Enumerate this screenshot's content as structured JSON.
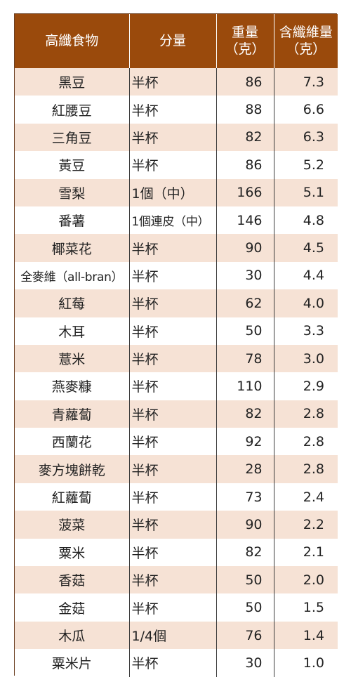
{
  "table": {
    "header": {
      "food": "高纖食物",
      "amount": "分量",
      "weight_line1": "重量",
      "weight_line2": "（克）",
      "fiber_line1": "含纖維量",
      "fiber_line2": "（克）"
    },
    "colors": {
      "header_background": "#9a4a0c",
      "header_text": "#ffffff",
      "stripe_background": "#f6e2d5"
    },
    "rows": [
      {
        "food": "黑豆",
        "amount": "半杯",
        "weight": "86",
        "fiber": "7.3"
      },
      {
        "food": "紅腰豆",
        "amount": "半杯",
        "weight": "88",
        "fiber": "6.6"
      },
      {
        "food": "三角豆",
        "amount": "半杯",
        "weight": "82",
        "fiber": "6.3"
      },
      {
        "food": "黃豆",
        "amount": "半杯",
        "weight": "86",
        "fiber": "5.2"
      },
      {
        "food": "雪梨",
        "amount": "1個（中）",
        "weight": "166",
        "fiber": "5.1"
      },
      {
        "food": "番薯",
        "amount": "1個連皮（中）",
        "weight": "146",
        "fiber": "4.8"
      },
      {
        "food": "椰菜花",
        "amount": "半杯",
        "weight": "90",
        "fiber": "4.5"
      },
      {
        "food": "全麥維（all-bran）",
        "amount": "半杯",
        "weight": "30",
        "fiber": "4.4"
      },
      {
        "food": "紅莓",
        "amount": "半杯",
        "weight": "62",
        "fiber": "4.0"
      },
      {
        "food": "木耳",
        "amount": "半杯",
        "weight": "50",
        "fiber": "3.3"
      },
      {
        "food": "薏米",
        "amount": "半杯",
        "weight": "78",
        "fiber": "3.0"
      },
      {
        "food": "燕麥糠",
        "amount": "半杯",
        "weight": "110",
        "fiber": "2.9"
      },
      {
        "food": "青蘿蔔",
        "amount": "半杯",
        "weight": "82",
        "fiber": "2.8"
      },
      {
        "food": "西蘭花",
        "amount": "半杯",
        "weight": "92",
        "fiber": "2.8"
      },
      {
        "food": "麥方塊餅乾",
        "amount": "半杯",
        "weight": "28",
        "fiber": "2.8"
      },
      {
        "food": "紅蘿蔔",
        "amount": "半杯",
        "weight": "73",
        "fiber": "2.4"
      },
      {
        "food": "菠菜",
        "amount": "半杯",
        "weight": "90",
        "fiber": "2.2"
      },
      {
        "food": "粟米",
        "amount": "半杯",
        "weight": "82",
        "fiber": "2.1"
      },
      {
        "food": "香菇",
        "amount": "半杯",
        "weight": "50",
        "fiber": "2.0"
      },
      {
        "food": "金菇",
        "amount": "半杯",
        "weight": "50",
        "fiber": "1.5"
      },
      {
        "food": "木瓜",
        "amount": "1/4個",
        "weight": "76",
        "fiber": "1.4"
      },
      {
        "food": "粟米片",
        "amount": "半杯",
        "weight": "30",
        "fiber": "1.0"
      }
    ]
  }
}
